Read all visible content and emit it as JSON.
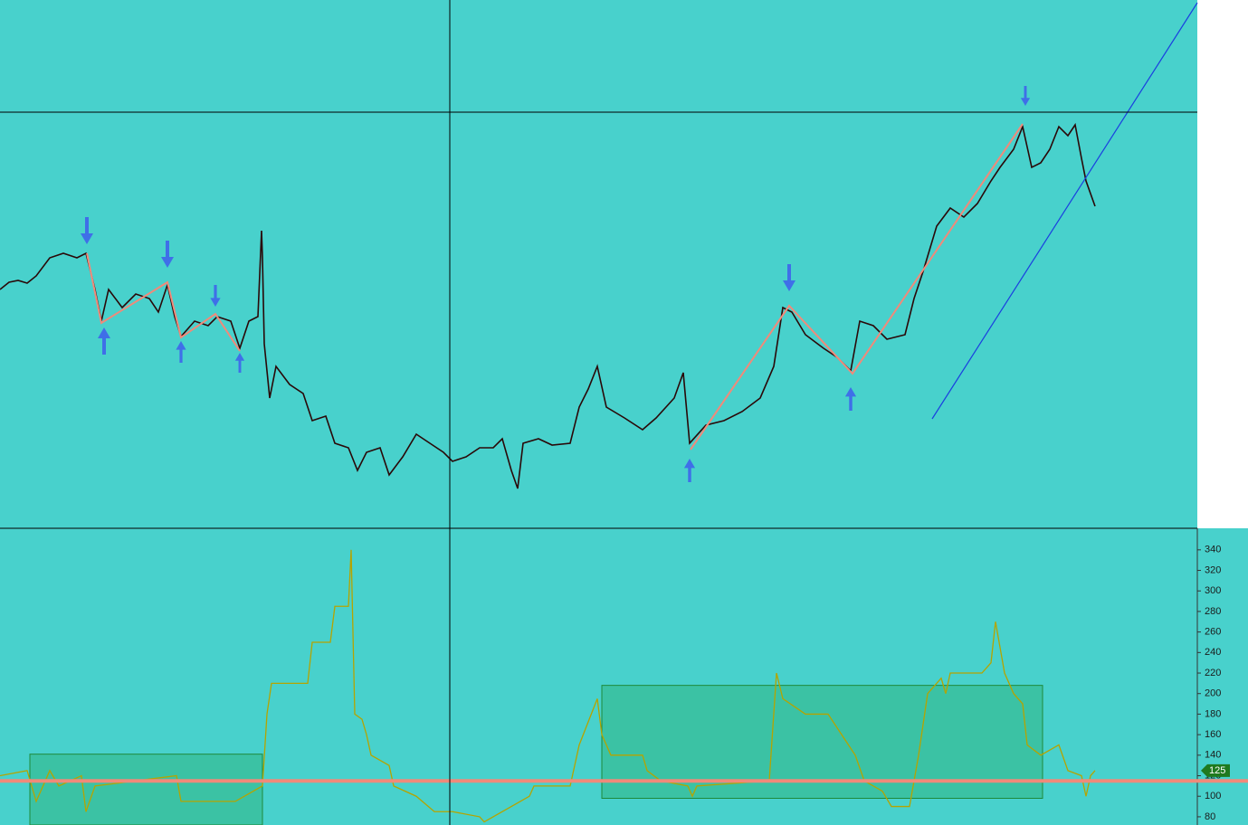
{
  "chart_data": {
    "type": "line",
    "x": [
      0,
      30,
      40,
      55,
      65,
      90,
      95,
      105,
      150,
      195,
      200,
      260,
      290,
      295,
      300,
      340,
      345,
      365,
      370,
      385,
      388,
      392,
      400,
      405,
      410,
      430,
      435,
      460,
      480,
      500,
      530,
      535,
      565,
      585,
      590,
      630,
      640,
      660,
      665,
      675,
      710,
      715,
      730,
      760,
      765,
      770,
      850,
      858,
      865,
      890,
      915,
      930,
      945,
      955,
      975,
      985,
      1005,
      1015,
      1025,
      1040,
      1045,
      1050,
      1085,
      1095,
      1100,
      1110,
      1120,
      1130,
      1135,
      1150,
      1170,
      1180,
      1195,
      1200,
      1205,
      1210
    ],
    "series": [
      {
        "color": "#b5a400",
        "values": [
          120,
          125,
          95,
          125,
          110,
          120,
          85,
          110,
          115,
          120,
          95,
          95,
          110,
          180,
          210,
          210,
          250,
          250,
          285,
          285,
          340,
          180,
          175,
          160,
          140,
          130,
          110,
          100,
          85,
          85,
          80,
          75,
          90,
          100,
          110,
          110,
          150,
          195,
          160,
          140,
          140,
          125,
          115,
          110,
          100,
          110,
          115,
          220,
          195,
          180,
          180,
          160,
          140,
          115,
          105,
          90,
          90,
          140,
          200,
          215,
          200,
          220,
          220,
          230,
          270,
          220,
          200,
          190,
          150,
          140,
          150,
          125,
          120,
          100,
          120,
          125
        ]
      }
    ],
    "xlim": [
      0,
      1323
    ],
    "ylim": [
      72,
      361
    ],
    "yticks": [
      80,
      100,
      120,
      140,
      160,
      180,
      200,
      220,
      240,
      260,
      280,
      300,
      320,
      340
    ],
    "level": 115,
    "level_color": "#f08a7a",
    "current_value": 125,
    "zones": [
      {
        "x": [
          33,
          290
        ],
        "y": [
          72,
          141
        ]
      },
      {
        "x": [
          665,
          1152
        ],
        "y": [
          98,
          208
        ]
      }
    ],
    "zone_color": "#3abf9c"
  }
}
